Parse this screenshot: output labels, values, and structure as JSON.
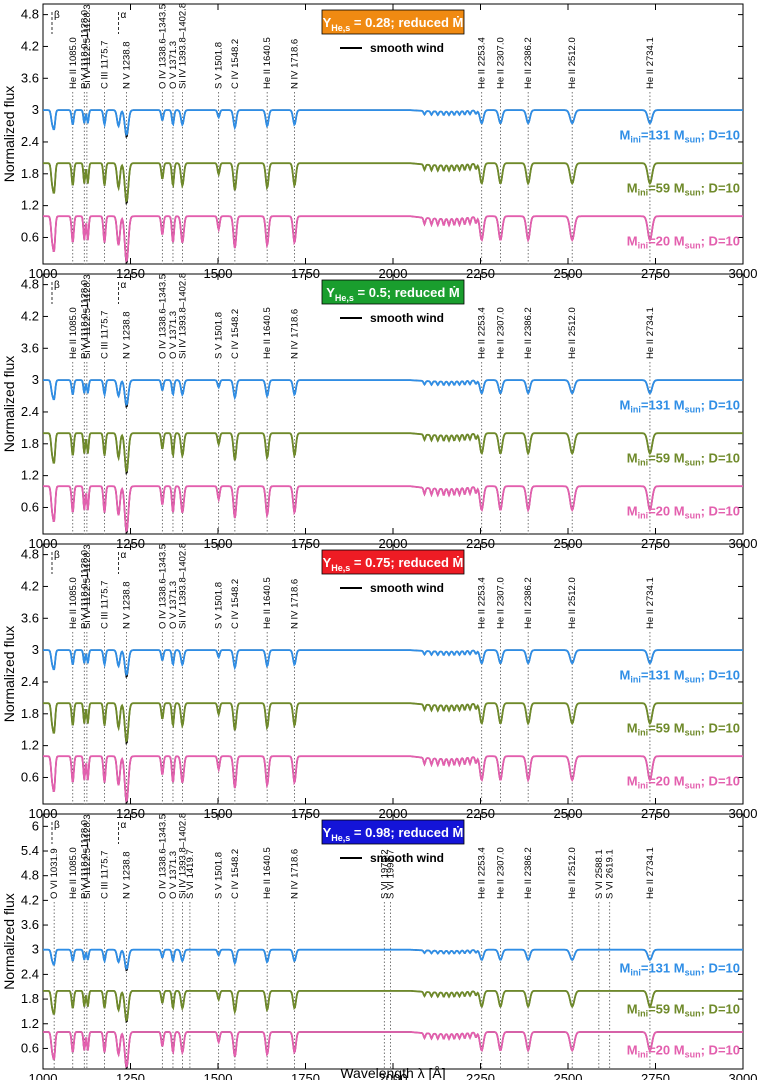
{
  "figure": {
    "ylabel": "Normalized flux",
    "xlabel": "Wavelength  λ [Å]",
    "xlim": [
      1000,
      3000
    ],
    "xticks": [
      1000,
      1250,
      1500,
      1750,
      2000,
      2250,
      2500,
      2750,
      3000
    ]
  },
  "colors": {
    "high_mass": "#2f8ee6",
    "mid_mass": "#6f8a2a",
    "low_mass": "#e35fae",
    "smooth_wind": "#000000",
    "guide": "#555555"
  },
  "line_ids": [
    {
      "label": "He II 1085.0",
      "x": 1085.0
    },
    {
      "label": "P V 1118.0–1128.0",
      "x": 1118.0
    },
    {
      "label": "Si IV 1122.5–1128.3",
      "x": 1125.4
    },
    {
      "label": "C III 1175.7",
      "x": 1175.7
    },
    {
      "label": "N V 1238.8",
      "x": 1238.8
    },
    {
      "label": "O IV 1338.6–1343.5",
      "x": 1341.0
    },
    {
      "label": "O V 1371.3",
      "x": 1371.3
    },
    {
      "label": "Si IV 1393.8–1402.8",
      "x": 1398.3
    },
    {
      "label": "S V 1501.8",
      "x": 1501.8
    },
    {
      "label": "C IV 1548.2",
      "x": 1548.2
    },
    {
      "label": "He II 1640.5",
      "x": 1640.5
    },
    {
      "label": "N IV 1718.6",
      "x": 1718.6
    },
    {
      "label": "He II 2253.4",
      "x": 2253.4
    },
    {
      "label": "He II 2307.0",
      "x": 2307.0
    },
    {
      "label": "He II 2386.2",
      "x": 2386.2
    },
    {
      "label": "He II 2512.0",
      "x": 2512.0
    },
    {
      "label": "He II 2734.1",
      "x": 2734.1
    }
  ],
  "extra_line_ids_panel4": [
    {
      "label": "O VI 1031.9",
      "x": 1031.9
    },
    {
      "label": "S VI 1419.7",
      "x": 1419.7
    },
    {
      "label": "S VI 1975.2",
      "x": 1975.2
    },
    {
      "label": "S VI 1992.7",
      "x": 1992.7
    },
    {
      "label": "S VI 2588.1",
      "x": 2588.1
    },
    {
      "label": "S VI 2619.1",
      "x": 2619.1
    }
  ],
  "chart_data": [
    {
      "type": "line",
      "badge": {
        "y_symbol": "Y",
        "y_sub": "He,s",
        "rest": " = 0.28; reduced Ṁ",
        "color": "#f08a12"
      },
      "legend_text": "smooth wind",
      "lyman_marks": [
        "β",
        "α"
      ],
      "ylim": [
        0.1,
        5.0
      ],
      "yticks": [
        "4.8",
        "4.2",
        "3.6",
        "3",
        "2.4",
        "1.8",
        "1.2",
        "0.6"
      ],
      "series": [
        {
          "name": "M_ini=131 M_sun; D=10",
          "label_main": "M",
          "label_sub1": "ini",
          "label_mid": "=131 M",
          "label_sub2": "sun",
          "label_tail": "; D=10",
          "offset": 3.0
        },
        {
          "name": "M_ini=59 M_sun; D=10",
          "label_main": "M",
          "label_sub1": "ini",
          "label_mid": "=59 M",
          "label_sub2": "sun",
          "label_tail": "; D=10",
          "offset": 2.0
        },
        {
          "name": "M_ini=20 M_sun; D=10",
          "label_main": "M",
          "label_sub1": "ini",
          "label_mid": "=20 M",
          "label_sub2": "sun",
          "label_tail": "; D=10",
          "offset": 1.0
        }
      ]
    },
    {
      "type": "line",
      "badge": {
        "y_symbol": "Y",
        "y_sub": "He,s",
        "rest": " = 0.5; reduced Ṁ",
        "color": "#1a9e2e"
      },
      "legend_text": "smooth wind",
      "lyman_marks": [
        "β",
        "α"
      ],
      "ylim": [
        0.1,
        5.0
      ],
      "yticks": [
        "4.8",
        "4.2",
        "3.6",
        "3",
        "2.4",
        "1.8",
        "1.2",
        "0.6"
      ],
      "series": [
        {
          "name": "M_ini=131 M_sun; D=10",
          "label_main": "M",
          "label_sub1": "ini",
          "label_mid": "=131 M",
          "label_sub2": "sun",
          "label_tail": "; D=10",
          "offset": 3.0
        },
        {
          "name": "M_ini=59 M_sun; D=10",
          "label_main": "M",
          "label_sub1": "ini",
          "label_mid": "=59 M",
          "label_sub2": "sun",
          "label_tail": "; D=10",
          "offset": 2.0
        },
        {
          "name": "M_ini=20 M_sun; D=10",
          "label_main": "M",
          "label_sub1": "ini",
          "label_mid": "=20 M",
          "label_sub2": "sun",
          "label_tail": "; D=10",
          "offset": 1.0
        }
      ]
    },
    {
      "type": "line",
      "badge": {
        "y_symbol": "Y",
        "y_sub": "He,s",
        "rest": " = 0.75; reduced Ṁ",
        "color": "#ee1c24"
      },
      "legend_text": "smooth wind",
      "lyman_marks": [
        "β",
        "α"
      ],
      "ylim": [
        0.1,
        5.0
      ],
      "yticks": [
        "4.8",
        "4.2",
        "3.6",
        "3",
        "2.4",
        "1.8",
        "1.2",
        "0.6"
      ],
      "series": [
        {
          "name": "M_ini=131 M_sun; D=10",
          "label_main": "M",
          "label_sub1": "ini",
          "label_mid": "=131 M",
          "label_sub2": "sun",
          "label_tail": "; D=10",
          "offset": 3.0
        },
        {
          "name": "M_ini=59 M_sun; D=10",
          "label_main": "M",
          "label_sub1": "ini",
          "label_mid": "=59 M",
          "label_sub2": "sun",
          "label_tail": "; D=10",
          "offset": 2.0
        },
        {
          "name": "M_ini=20 M_sun; D=10",
          "label_main": "M",
          "label_sub1": "ini",
          "label_mid": "=20 M",
          "label_sub2": "sun",
          "label_tail": "; D=10",
          "offset": 1.0
        }
      ]
    },
    {
      "type": "line",
      "badge": {
        "y_symbol": "Y",
        "y_sub": "He,s",
        "rest": " = 0.98; reduced Ṁ",
        "color": "#1414d8"
      },
      "legend_text": "smooth wind",
      "lyman_marks": [
        "β",
        "α"
      ],
      "ylim": [
        0.1,
        6.3
      ],
      "yticks": [
        "6",
        "5.4",
        "4.8",
        "4.2",
        "3.6",
        "3",
        "2.4",
        "1.8",
        "1.2",
        "0.6"
      ],
      "series": [
        {
          "name": "M_ini=131 M_sun; D=10",
          "label_main": "M",
          "label_sub1": "ini",
          "label_mid": "=131 M",
          "label_sub2": "sun",
          "label_tail": "; D=10",
          "offset": 3.0
        },
        {
          "name": "M_ini=59 M_sun; D=10",
          "label_main": "M",
          "label_sub1": "ini",
          "label_mid": "=59 M",
          "label_sub2": "sun",
          "label_tail": "; D=10",
          "offset": 2.0
        },
        {
          "name": "M_ini=20 M_sun; D=10",
          "label_main": "M",
          "label_sub1": "ini",
          "label_mid": "=20 M",
          "label_sub2": "sun",
          "label_tail": "; D=10",
          "offset": 1.0
        }
      ]
    }
  ]
}
